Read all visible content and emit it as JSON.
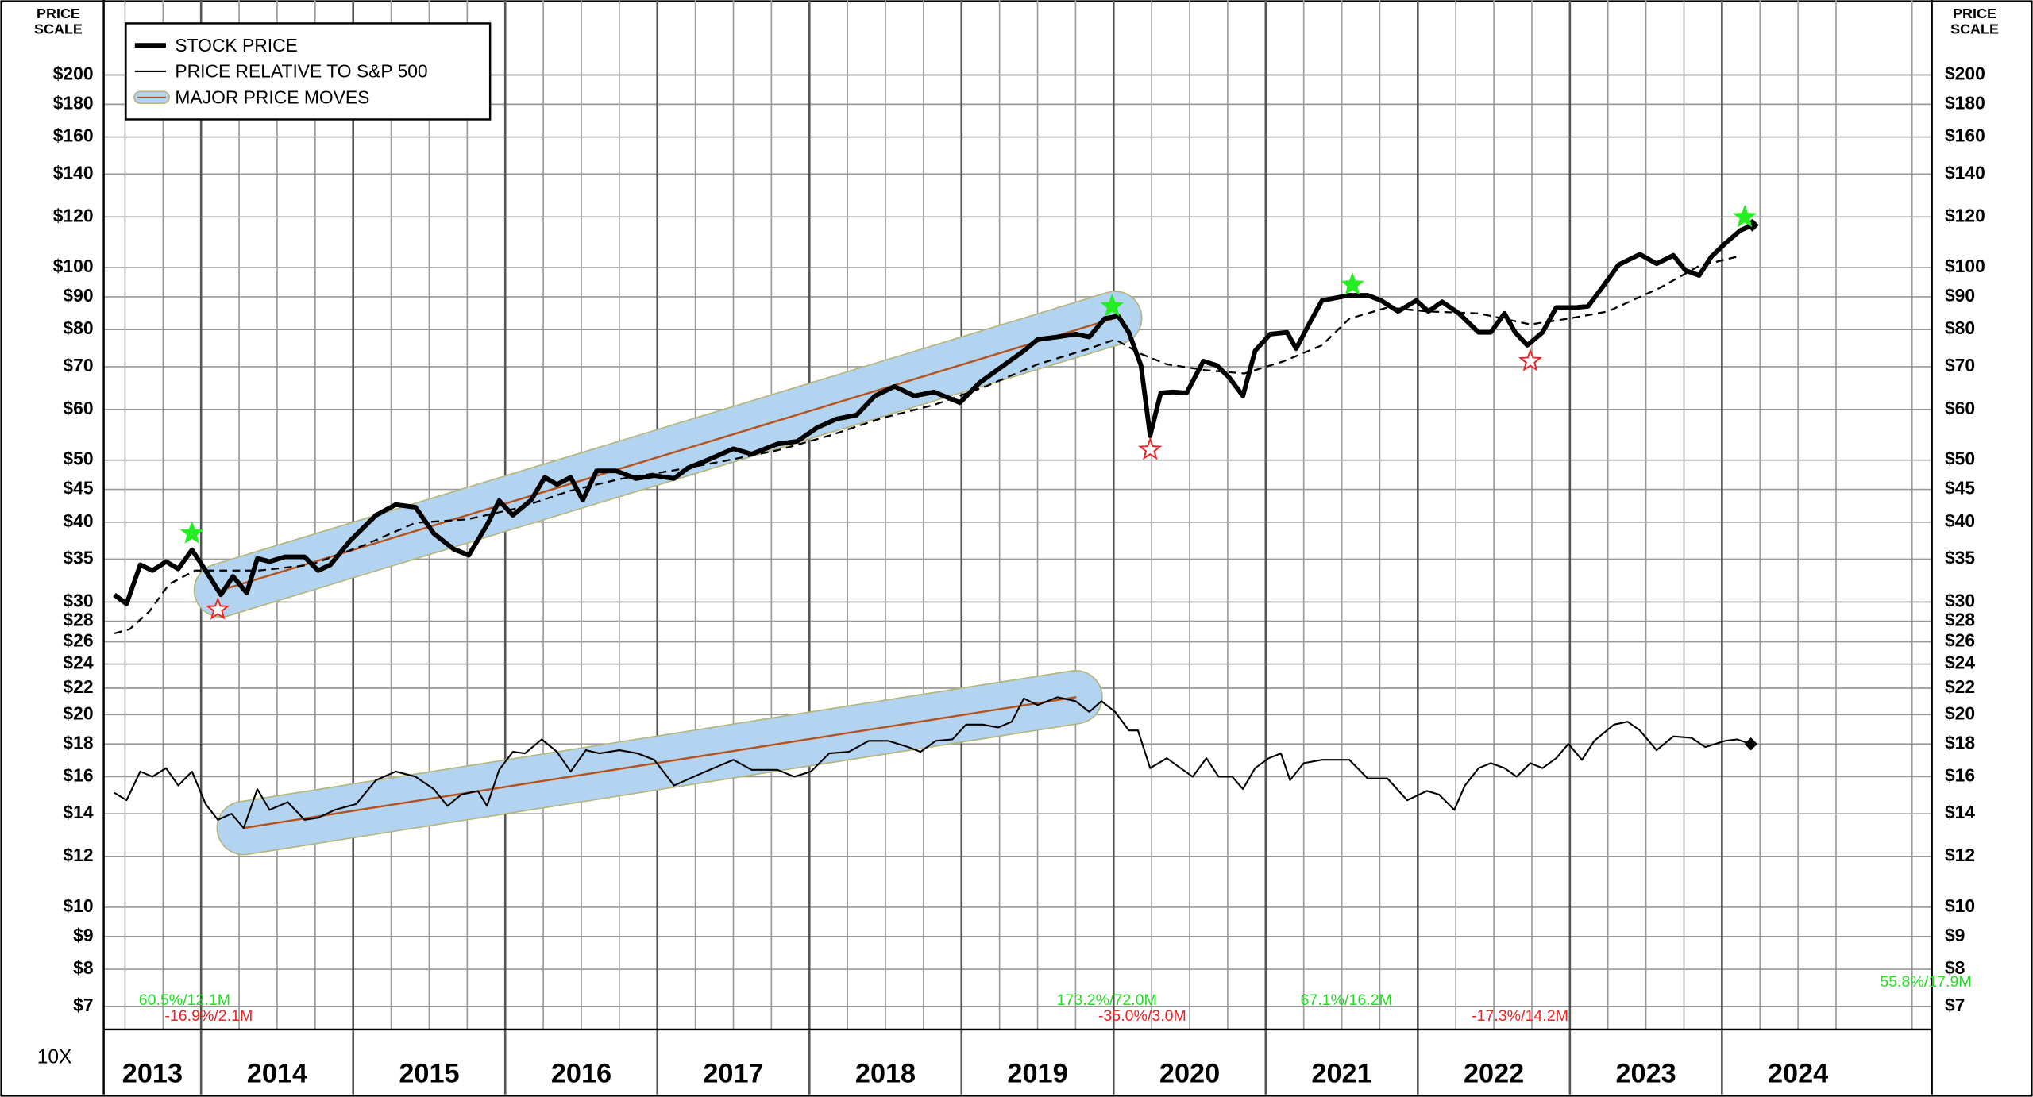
{
  "chart_data": {
    "type": "line",
    "price_scale_label": "PRICE SCALE",
    "scale_note": "10X",
    "log_scale": true,
    "grid": true,
    "legend": "upper left",
    "xlim": [
      2013.36,
      2025.38
    ],
    "xticks": [
      2013,
      2014,
      2015,
      2016,
      2017,
      2018,
      2019,
      2020,
      2021,
      2022,
      2023,
      2024
    ],
    "ylim": [
      6.44,
      262
    ],
    "yticks": [
      {
        "value": 7,
        "label": "$7"
      },
      {
        "value": 8,
        "label": "$8"
      },
      {
        "value": 9,
        "label": "$9"
      },
      {
        "value": 10,
        "label": "$10"
      },
      {
        "value": 12,
        "label": "$12"
      },
      {
        "value": 14,
        "label": "$14"
      },
      {
        "value": 16,
        "label": "$16"
      },
      {
        "value": 18,
        "label": "$18"
      },
      {
        "value": 20,
        "label": "$20"
      },
      {
        "value": 22,
        "label": "$22"
      },
      {
        "value": 24,
        "label": "$24"
      },
      {
        "value": 26,
        "label": "$26"
      },
      {
        "value": 28,
        "label": "$28"
      },
      {
        "value": 30,
        "label": "$30"
      },
      {
        "value": 35,
        "label": "$35"
      },
      {
        "value": 40,
        "label": "$40"
      },
      {
        "value": 45,
        "label": "$45"
      },
      {
        "value": 50,
        "label": "$50"
      },
      {
        "value": 60,
        "label": "$60"
      },
      {
        "value": 70,
        "label": "$70"
      },
      {
        "value": 80,
        "label": "$80"
      },
      {
        "value": 90,
        "label": "$90"
      },
      {
        "value": 100,
        "label": "$100"
      },
      {
        "value": 120,
        "label": "$120"
      },
      {
        "value": 140,
        "label": "$140"
      },
      {
        "value": 160,
        "label": "$160"
      },
      {
        "value": 180,
        "label": "$180"
      },
      {
        "value": 200,
        "label": "$200"
      }
    ],
    "series": [
      {
        "name": "STOCK PRICE",
        "color": "#000000",
        "style": "thick",
        "x": [
          2013.43,
          2013.51,
          2013.6,
          2013.68,
          2013.77,
          2013.85,
          2013.94,
          2014.03,
          2014.13,
          2014.21,
          2014.3,
          2014.37,
          2014.45,
          2014.55,
          2014.68,
          2014.77,
          2014.85,
          2014.98,
          2015.15,
          2015.28,
          2015.41,
          2015.53,
          2015.66,
          2015.76,
          2015.88,
          2015.96,
          2016.05,
          2016.17,
          2016.26,
          2016.34,
          2016.43,
          2016.51,
          2016.6,
          2016.73,
          2016.86,
          2016.98,
          2017.11,
          2017.2,
          2017.32,
          2017.5,
          2017.62,
          2017.79,
          2017.92,
          2018.05,
          2018.18,
          2018.31,
          2018.43,
          2018.56,
          2018.69,
          2018.82,
          2018.99,
          2019.12,
          2019.24,
          2019.41,
          2019.5,
          2019.63,
          2019.75,
          2019.84,
          2019.94,
          2020.03,
          2020.1,
          2020.18,
          2020.24,
          2020.31,
          2020.39,
          2020.48,
          2020.59,
          2020.68,
          2020.76,
          2020.85,
          2020.93,
          2021.03,
          2021.14,
          2021.2,
          2021.29,
          2021.37,
          2021.55,
          2021.67,
          2021.76,
          2021.87,
          2021.99,
          2022.07,
          2022.16,
          2022.27,
          2022.4,
          2022.48,
          2022.57,
          2022.64,
          2022.72,
          2022.82,
          2022.91,
          2023.04,
          2023.12,
          2023.21,
          2023.32,
          2023.46,
          2023.57,
          2023.68,
          2023.76,
          2023.85,
          2023.93,
          2024.02,
          2024.12,
          2024.2
        ],
        "values": [
          30.8,
          29.8,
          34.3,
          33.6,
          34.7,
          33.8,
          36.2,
          33.6,
          30.8,
          32.9,
          31.0,
          35.1,
          34.7,
          35.3,
          35.3,
          33.6,
          34.3,
          37.4,
          41.0,
          42.6,
          42.2,
          38.4,
          36.3,
          35.5,
          39.6,
          43.2,
          41.0,
          43.3,
          47.0,
          45.8,
          47.0,
          43.3,
          48.1,
          48.1,
          46.8,
          47.3,
          46.8,
          48.6,
          49.9,
          52.1,
          51.1,
          53.0,
          53.5,
          56.2,
          58.0,
          58.8,
          63.0,
          65.2,
          63.0,
          63.9,
          61.5,
          66.1,
          69.3,
          74.1,
          77.2,
          77.9,
          78.7,
          77.9,
          83.2,
          84.0,
          79.2,
          70.3,
          54.6,
          63.7,
          63.9,
          63.7,
          71.4,
          70.3,
          67.3,
          63.0,
          74.1,
          78.7,
          79.2,
          74.7,
          82.0,
          88.8,
          90.5,
          90.5,
          88.8,
          85.4,
          88.8,
          85.4,
          88.4,
          84.8,
          79.2,
          79.2,
          84.8,
          79.2,
          75.6,
          79.2,
          86.6,
          86.6,
          87.0,
          92.9,
          101.0,
          104.9,
          101.4,
          104.5,
          99.0,
          97.2,
          104.0,
          109.0,
          114.3,
          116.5
        ]
      },
      {
        "name": "PRICE RELATIVE TO S&P 500",
        "color": "#000000",
        "style": "thin",
        "x": [
          2013.43,
          2013.51,
          2013.6,
          2013.68,
          2013.77,
          2013.85,
          2013.94,
          2014.03,
          2014.11,
          2014.2,
          2014.28,
          2014.37,
          2014.45,
          2014.57,
          2014.68,
          2014.77,
          2014.88,
          2015.02,
          2015.15,
          2015.28,
          2015.41,
          2015.53,
          2015.62,
          2015.71,
          2015.82,
          2015.88,
          2015.96,
          2016.05,
          2016.13,
          2016.24,
          2016.34,
          2016.43,
          2016.53,
          2016.62,
          2016.75,
          2016.87,
          2016.98,
          2017.11,
          2017.24,
          2017.37,
          2017.5,
          2017.62,
          2017.79,
          2017.9,
          2018.01,
          2018.13,
          2018.26,
          2018.39,
          2018.52,
          2018.65,
          2018.73,
          2018.83,
          2018.94,
          2019.03,
          2019.14,
          2019.24,
          2019.33,
          2019.41,
          2019.5,
          2019.63,
          2019.75,
          2019.84,
          2019.92,
          2020.01,
          2020.1,
          2020.16,
          2020.24,
          2020.35,
          2020.44,
          2020.52,
          2020.61,
          2020.69,
          2020.78,
          2020.85,
          2020.93,
          2021.02,
          2021.1,
          2021.16,
          2021.25,
          2021.37,
          2021.55,
          2021.67,
          2021.8,
          2021.93,
          2022.06,
          2022.14,
          2022.24,
          2022.31,
          2022.4,
          2022.48,
          2022.57,
          2022.65,
          2022.74,
          2022.82,
          2022.91,
          2022.99,
          2023.08,
          2023.16,
          2023.29,
          2023.38,
          2023.46,
          2023.57,
          2023.68,
          2023.8,
          2023.89,
          2024.02,
          2024.1,
          2024.19
        ],
        "values": [
          15.1,
          14.7,
          16.3,
          16.0,
          16.5,
          15.5,
          16.3,
          14.5,
          13.7,
          14.0,
          13.3,
          15.3,
          14.2,
          14.6,
          13.7,
          13.8,
          14.2,
          14.5,
          15.8,
          16.3,
          16.0,
          15.3,
          14.4,
          15.0,
          15.2,
          14.4,
          16.4,
          17.5,
          17.4,
          18.3,
          17.5,
          16.3,
          17.6,
          17.4,
          17.6,
          17.4,
          17.0,
          15.5,
          16.0,
          16.5,
          17.0,
          16.4,
          16.4,
          16.0,
          16.3,
          17.4,
          17.5,
          18.2,
          18.2,
          17.8,
          17.5,
          18.2,
          18.3,
          19.3,
          19.3,
          19.1,
          19.5,
          21.2,
          20.7,
          21.3,
          21.0,
          20.2,
          21.0,
          20.2,
          18.9,
          18.9,
          16.5,
          17.1,
          16.5,
          16.0,
          17.1,
          16.0,
          16.0,
          15.3,
          16.5,
          17.1,
          17.4,
          15.8,
          16.8,
          17.0,
          17.0,
          15.9,
          15.9,
          14.7,
          15.2,
          15.0,
          14.2,
          15.5,
          16.5,
          16.8,
          16.5,
          16.0,
          16.8,
          16.5,
          17.1,
          18.0,
          17.0,
          18.2,
          19.3,
          19.5,
          18.9,
          17.6,
          18.5,
          18.4,
          17.8,
          18.2,
          18.3,
          18.0
        ]
      },
      {
        "color": "#000000",
        "style": "dashed",
        "x": [
          2013.43,
          2013.53,
          2013.66,
          2013.79,
          2013.96,
          2014.13,
          2014.38,
          2014.72,
          2015.07,
          2015.41,
          2015.75,
          2016.09,
          2016.43,
          2016.77,
          2017.11,
          2017.45,
          2017.79,
          2018.13,
          2018.48,
          2018.82,
          2019.16,
          2019.5,
          2019.84,
          2020.01,
          2020.18,
          2020.35,
          2020.61,
          2020.86,
          2021.12,
          2021.37,
          2021.55,
          2021.8,
          2022.06,
          2022.4,
          2022.74,
          2022.99,
          2023.25,
          2023.59,
          2023.85,
          2024.1
        ],
        "values": [
          26.8,
          27.2,
          29.0,
          32.0,
          33.6,
          33.6,
          33.6,
          34.3,
          36.8,
          39.9,
          40.4,
          42.1,
          44.8,
          46.8,
          48.2,
          49.9,
          51.8,
          54.6,
          58.2,
          61.0,
          65.2,
          70.6,
          74.7,
          77.2,
          73.3,
          70.6,
          69.1,
          68.3,
          71.4,
          75.6,
          83.2,
          86.6,
          85.4,
          84.8,
          81.5,
          83.2,
          85.4,
          92.9,
          100.6,
          104.0
        ]
      }
    ],
    "bands": {
      "name": "MAJOR PRICE MOVES",
      "color": "#b3d4f0",
      "border_color": "#b5b57a",
      "trend_color": "#b5531f",
      "items": [
        {
          "x": [
            2014.13,
            2020.01
          ],
          "values": [
            31.3,
            83.4
          ]
        },
        {
          "x": [
            2014.28,
            2019.75
          ],
          "values": [
            13.3,
            21.3
          ]
        }
      ]
    },
    "high_markers": {
      "color": "#22ee22",
      "x": [
        2013.94,
        2019.99,
        2021.57,
        2024.15
      ],
      "values": [
        38.4,
        87.0,
        94.0,
        119.9
      ]
    },
    "low_markers": {
      "color": "#ee2222",
      "x": [
        2014.11,
        2020.24,
        2022.74
      ],
      "values": [
        29.2,
        51.9,
        71.4
      ]
    },
    "annotations": [
      {
        "text": "60.5%/12.1M",
        "color": "#22dd22"
      },
      {
        "text": "-16.9%/2.1M",
        "color": "#ee2222"
      },
      {
        "text": "173.2%/72.0M",
        "color": "#22dd22"
      },
      {
        "text": "-35.0%/3.0M",
        "color": "#ee2222"
      },
      {
        "text": "67.1%/16.2M",
        "color": "#22dd22"
      },
      {
        "text": "-17.3%/14.2M",
        "color": "#ee2222"
      },
      {
        "text": "55.8%/17.9M",
        "color": "#22dd22"
      }
    ]
  }
}
